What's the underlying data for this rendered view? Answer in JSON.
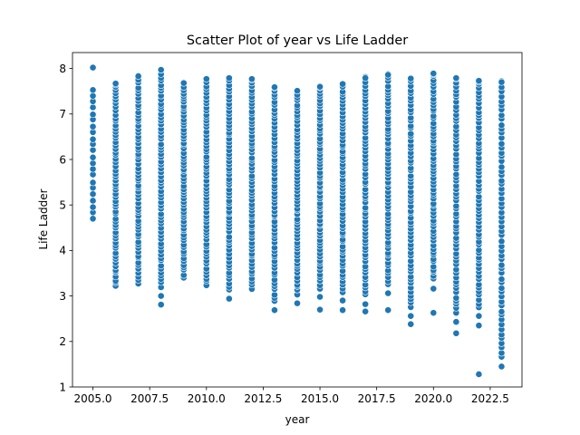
{
  "chart_data": {
    "type": "scatter",
    "title": "Scatter Plot of year vs Life Ladder",
    "xlabel": "year",
    "ylabel": "Life Ladder",
    "xlim": [
      2004.1,
      2023.9
    ],
    "ylim": [
      1.0,
      8.35
    ],
    "xticks": [
      2005.0,
      2007.5,
      2010.0,
      2012.5,
      2015.0,
      2017.5,
      2020.0,
      2022.5
    ],
    "xtick_labels": [
      "2005.0",
      "2007.5",
      "2010.0",
      "2012.5",
      "2015.0",
      "2017.5",
      "2020.0",
      "2022.5"
    ],
    "yticks": [
      1,
      2,
      3,
      4,
      5,
      6,
      7,
      8
    ],
    "ytick_labels": [
      "1",
      "2",
      "3",
      "4",
      "5",
      "6",
      "7",
      "8"
    ],
    "grid": false,
    "marker_color": "#1f77b4",
    "series": [
      {
        "points": [
          {
            "year": 2005,
            "min": 4.72,
            "max": 8.02,
            "outliers": [
              8.02
            ]
          },
          {
            "year": 2006,
            "min": 3.2,
            "max": 7.67,
            "outliers": []
          },
          {
            "year": 2007,
            "min": 3.28,
            "max": 7.83,
            "outliers": []
          },
          {
            "year": 2008,
            "min": 2.81,
            "max": 7.97,
            "outliers": [
              2.81,
              3.0
            ]
          },
          {
            "year": 2009,
            "min": 3.41,
            "max": 7.68,
            "outliers": []
          },
          {
            "year": 2010,
            "min": 3.23,
            "max": 7.77,
            "outliers": []
          },
          {
            "year": 2011,
            "min": 2.94,
            "max": 7.79,
            "outliers": [
              2.94
            ]
          },
          {
            "year": 2012,
            "min": 3.16,
            "max": 7.77,
            "outliers": []
          },
          {
            "year": 2013,
            "min": 2.69,
            "max": 7.59,
            "outliers": [
              2.69
            ]
          },
          {
            "year": 2014,
            "min": 2.84,
            "max": 7.51,
            "outliers": [
              2.84
            ]
          },
          {
            "year": 2015,
            "min": 2.7,
            "max": 7.6,
            "outliers": [
              2.7,
              2.98
            ]
          },
          {
            "year": 2016,
            "min": 2.69,
            "max": 7.66,
            "outliers": [
              2.69,
              2.9
            ]
          },
          {
            "year": 2017,
            "min": 2.66,
            "max": 7.79,
            "outliers": [
              2.66,
              2.82
            ]
          },
          {
            "year": 2018,
            "min": 2.69,
            "max": 7.86,
            "outliers": [
              2.69,
              3.06
            ]
          },
          {
            "year": 2019,
            "min": 2.38,
            "max": 7.78,
            "outliers": [
              2.38,
              2.56
            ]
          },
          {
            "year": 2020,
            "min": 2.63,
            "max": 7.89,
            "outliers": [
              2.63,
              3.16
            ]
          },
          {
            "year": 2021,
            "min": 2.18,
            "max": 7.79,
            "outliers": [
              2.18,
              2.43
            ]
          },
          {
            "year": 2022,
            "min": 1.28,
            "max": 7.73,
            "outliers": [
              1.28,
              2.35,
              2.56
            ]
          },
          {
            "year": 2023,
            "min": 1.45,
            "max": 7.7,
            "outliers": [
              1.45
            ]
          }
        ]
      }
    ]
  }
}
